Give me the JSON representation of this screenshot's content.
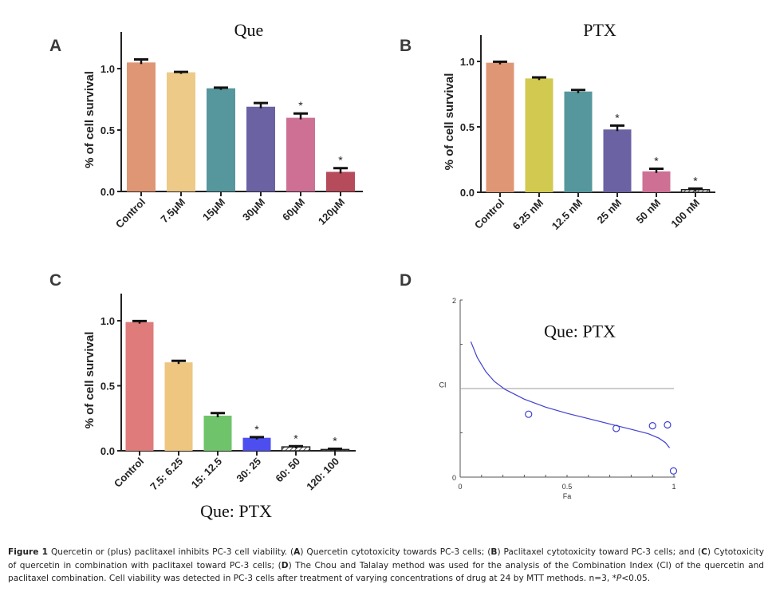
{
  "figure": {
    "caption": {
      "label": "Figure 1",
      "parts": [
        {
          "t": " Quercetin or (plus) paclitaxel inhibits PC-3 cell viability. ("
        },
        {
          "b": "A"
        },
        {
          "t": ") Quercetin cytotoxicity towards PC-3 cells; ("
        },
        {
          "b": "B"
        },
        {
          "t": ") Paclitaxel cytotoxicity toward PC-3 cells; and ("
        },
        {
          "b": "C"
        },
        {
          "t": ") Cytotoxicity of quercetin in combination with paclitaxel toward PC-3 cells; ("
        },
        {
          "b": "D"
        },
        {
          "t": ") The Chou and Talalay method was used for the analysis of the Combination Index (CI) of the quercetin and paclitaxel combination. Cell viability was detected in PC-3 cells after treatment of varying concentrations of drug at 24 by MTT methods. n=3, *"
        },
        {
          "i": "P"
        },
        {
          "t": "<0.05."
        }
      ]
    }
  },
  "chart_data": [
    {
      "panel": "A",
      "type": "bar",
      "title": "Que",
      "xlabel": "",
      "ylabel": "% of cell survival",
      "ylim": [
        0,
        1.3
      ],
      "yticks": [
        "0.0",
        "0.5",
        "1.0"
      ],
      "ytick_values": [
        0,
        0.5,
        1.0
      ],
      "categories": [
        "Control",
        "7.5μM",
        "15μM",
        "30μM",
        "60μM",
        "120μM"
      ],
      "values": [
        1.05,
        0.97,
        0.84,
        0.69,
        0.6,
        0.16
      ],
      "errors": [
        0.025,
        0.003,
        0.005,
        0.03,
        0.035,
        0.03
      ],
      "significant": [
        false,
        false,
        false,
        false,
        true,
        true
      ],
      "colors": [
        "#df9675",
        "#eeca88",
        "#56979e",
        "#6a62a3",
        "#cd7094",
        "#b54b5b"
      ],
      "grid": false
    },
    {
      "panel": "B",
      "type": "bar",
      "title": "PTX",
      "xlabel": "",
      "ylabel": "% of cell survival",
      "ylim": [
        0,
        1.2
      ],
      "yticks": [
        "0.0",
        "0.5",
        "1.0"
      ],
      "ytick_values": [
        0,
        0.5,
        1.0
      ],
      "categories": [
        "Control",
        "6.25 nM",
        "12.5 nM",
        "25 nM",
        "50 nM",
        "100 nM"
      ],
      "values": [
        0.99,
        0.87,
        0.77,
        0.48,
        0.16,
        0.02
      ],
      "errors": [
        0.008,
        0.008,
        0.012,
        0.03,
        0.02,
        0.008
      ],
      "significant": [
        false,
        false,
        false,
        true,
        true,
        true
      ],
      "colors": [
        "#df9675",
        "#d2c950",
        "#56979e",
        "#6a62a3",
        "#cd7094",
        "#ffffff"
      ],
      "hatched": [
        false,
        false,
        false,
        false,
        false,
        true
      ],
      "grid": false
    },
    {
      "panel": "C",
      "type": "bar",
      "title": "",
      "xlabel": "Que: PTX",
      "ylabel": "% of cell survival",
      "ylim": [
        0,
        1.2
      ],
      "yticks": [
        "0.0",
        "0.5",
        "1.0"
      ],
      "ytick_values": [
        0,
        0.5,
        1.0
      ],
      "categories": [
        "Control",
        "7.5: 6.25",
        "15: 12.5",
        "30: 25",
        "60: 50",
        "120: 100"
      ],
      "values": [
        0.99,
        0.68,
        0.27,
        0.1,
        0.03,
        0.01
      ],
      "errors": [
        0.008,
        0.012,
        0.02,
        0.005,
        0.005,
        0.005
      ],
      "significant": [
        false,
        false,
        false,
        true,
        true,
        true
      ],
      "colors": [
        "#e07b7b",
        "#eec680",
        "#6fc46b",
        "#4d4ef0",
        "#ffffff",
        "#ffffff"
      ],
      "hatched": [
        false,
        false,
        false,
        false,
        true,
        true
      ],
      "grid": false
    },
    {
      "panel": "D",
      "type": "scatter",
      "title": "Que: PTX",
      "xlabel": "Fa",
      "ylabel": "CI",
      "xlim": [
        0,
        1
      ],
      "ylim": [
        0,
        2
      ],
      "xticks": [
        "0",
        "0.5",
        "1"
      ],
      "xtick_values": [
        0,
        0.5,
        1
      ],
      "yticks": [
        "0",
        "2"
      ],
      "ytick_values": [
        0,
        2
      ],
      "reference_line": 1,
      "points": [
        {
          "x": 0.32,
          "y": 0.71
        },
        {
          "x": 0.73,
          "y": 0.55
        },
        {
          "x": 0.9,
          "y": 0.58
        },
        {
          "x": 0.97,
          "y": 0.59
        },
        {
          "x": 0.998,
          "y": 0.07
        }
      ],
      "curve": [
        {
          "x": 0.05,
          "y": 1.53
        },
        {
          "x": 0.08,
          "y": 1.35
        },
        {
          "x": 0.12,
          "y": 1.19
        },
        {
          "x": 0.16,
          "y": 1.08
        },
        {
          "x": 0.21,
          "y": 0.99
        },
        {
          "x": 0.3,
          "y": 0.88
        },
        {
          "x": 0.4,
          "y": 0.79
        },
        {
          "x": 0.5,
          "y": 0.72
        },
        {
          "x": 0.6,
          "y": 0.66
        },
        {
          "x": 0.7,
          "y": 0.6
        },
        {
          "x": 0.8,
          "y": 0.54
        },
        {
          "x": 0.88,
          "y": 0.49
        },
        {
          "x": 0.93,
          "y": 0.44
        },
        {
          "x": 0.96,
          "y": 0.39
        },
        {
          "x": 0.98,
          "y": 0.33
        }
      ],
      "color": "#4040d0",
      "grid": false
    }
  ]
}
